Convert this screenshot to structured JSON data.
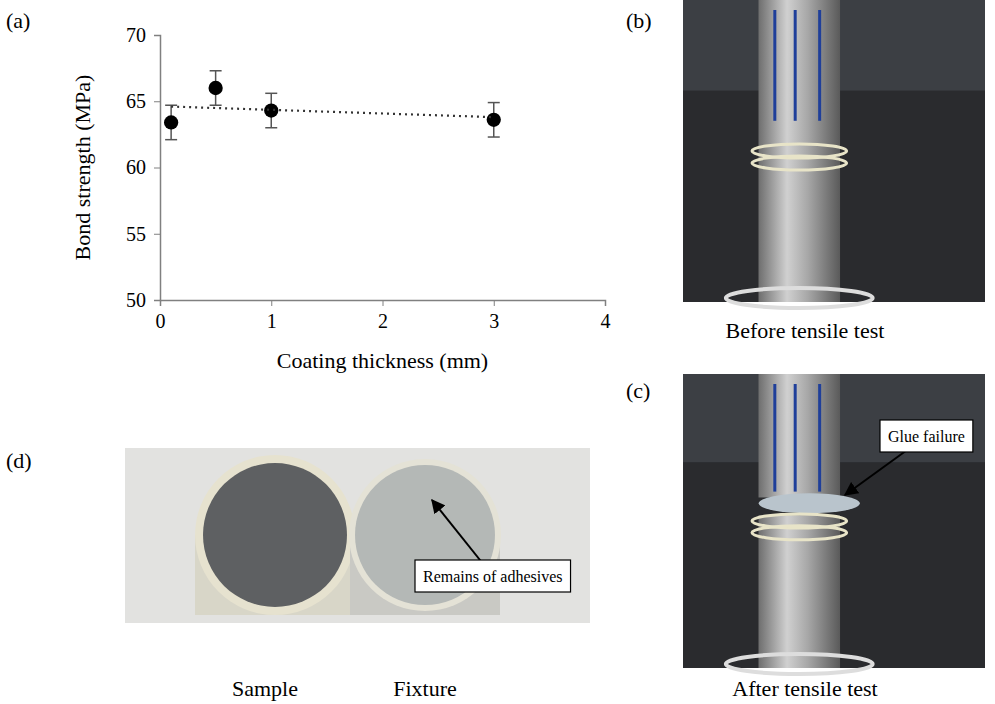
{
  "chart_data": {
    "type": "scatter",
    "x_label": "Coating thickness (mm)",
    "y_label": "Bond strength (MPa)",
    "xlim": [
      0,
      4
    ],
    "xticks": [
      0,
      1,
      2,
      3,
      4
    ],
    "ylim": [
      50,
      70
    ],
    "yticks": [
      50,
      55,
      60,
      65,
      70
    ],
    "grid": false,
    "color": "#000000",
    "series": [
      {
        "type": "scatter",
        "marker": "circle",
        "color": "#000000",
        "x": [
          0.1,
          0.5,
          1,
          3
        ],
        "values": [
          63.4,
          66.0,
          64.3,
          63.6
        ],
        "errors": [
          1.3,
          1.3,
          1.3,
          1.3
        ]
      },
      {
        "type": "line",
        "line_style": "dotted",
        "color": "#333333",
        "x": [
          0.1,
          3
        ],
        "values": [
          64.6,
          63.8
        ]
      }
    ]
  },
  "panel_labels": [
    "(a)",
    "(b)",
    "(c)",
    "(d)"
  ],
  "photos": [
    {
      "caption": "Before tensile test"
    },
    {
      "caption": "After tensile test",
      "annotation": "Glue failure"
    },
    {
      "captions": [
        "Sample",
        "Fixture"
      ],
      "annotation": "Remains of adhesives"
    }
  ]
}
